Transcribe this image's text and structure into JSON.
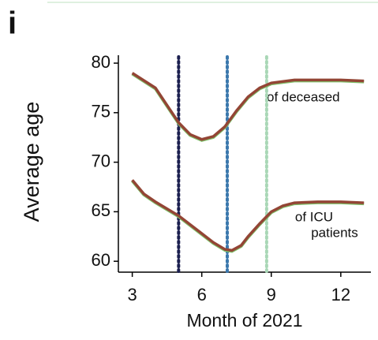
{
  "chart_data": {
    "type": "line",
    "panel_label": "i",
    "xlabel": "Month of 2021",
    "ylabel": "Average age",
    "xlim": [
      2.4,
      13.3
    ],
    "ylim": [
      58.9,
      80.8
    ],
    "xticks": [
      3,
      6,
      9,
      12
    ],
    "yticks": [
      60,
      65,
      70,
      75,
      80
    ],
    "series": [
      {
        "name": "of deceased",
        "color": "#934535",
        "x": [
          3,
          4,
          5,
          5.5,
          6,
          6.5,
          7,
          7.5,
          8,
          8.5,
          9,
          10,
          11,
          12,
          13
        ],
        "values": [
          79,
          77.5,
          74,
          72.8,
          72.3,
          72.6,
          73.6,
          75.2,
          76.6,
          77.5,
          78,
          78.3,
          78.3,
          78.3,
          78.2
        ]
      },
      {
        "name": "of ICU patients",
        "color": "#934535",
        "x": [
          3,
          3.5,
          4,
          5,
          6,
          6.5,
          7,
          7.3,
          7.7,
          8,
          8.5,
          9,
          9.5,
          10,
          11,
          12,
          13
        ],
        "values": [
          68.2,
          66.8,
          66,
          64.6,
          62.8,
          61.9,
          61.2,
          61.1,
          61.6,
          62.5,
          63.8,
          65,
          65.6,
          65.9,
          66,
          66,
          65.9
        ]
      }
    ],
    "annotations": [
      [
        "of deceased"
      ],
      [
        "of ICU",
        "patients"
      ]
    ],
    "vlines": [
      {
        "x": 5,
        "color": "#1b1f4f"
      },
      {
        "x": 7.1,
        "color": "#3b78ad"
      },
      {
        "x": 8.8,
        "color": "#a9d7b6"
      }
    ]
  }
}
